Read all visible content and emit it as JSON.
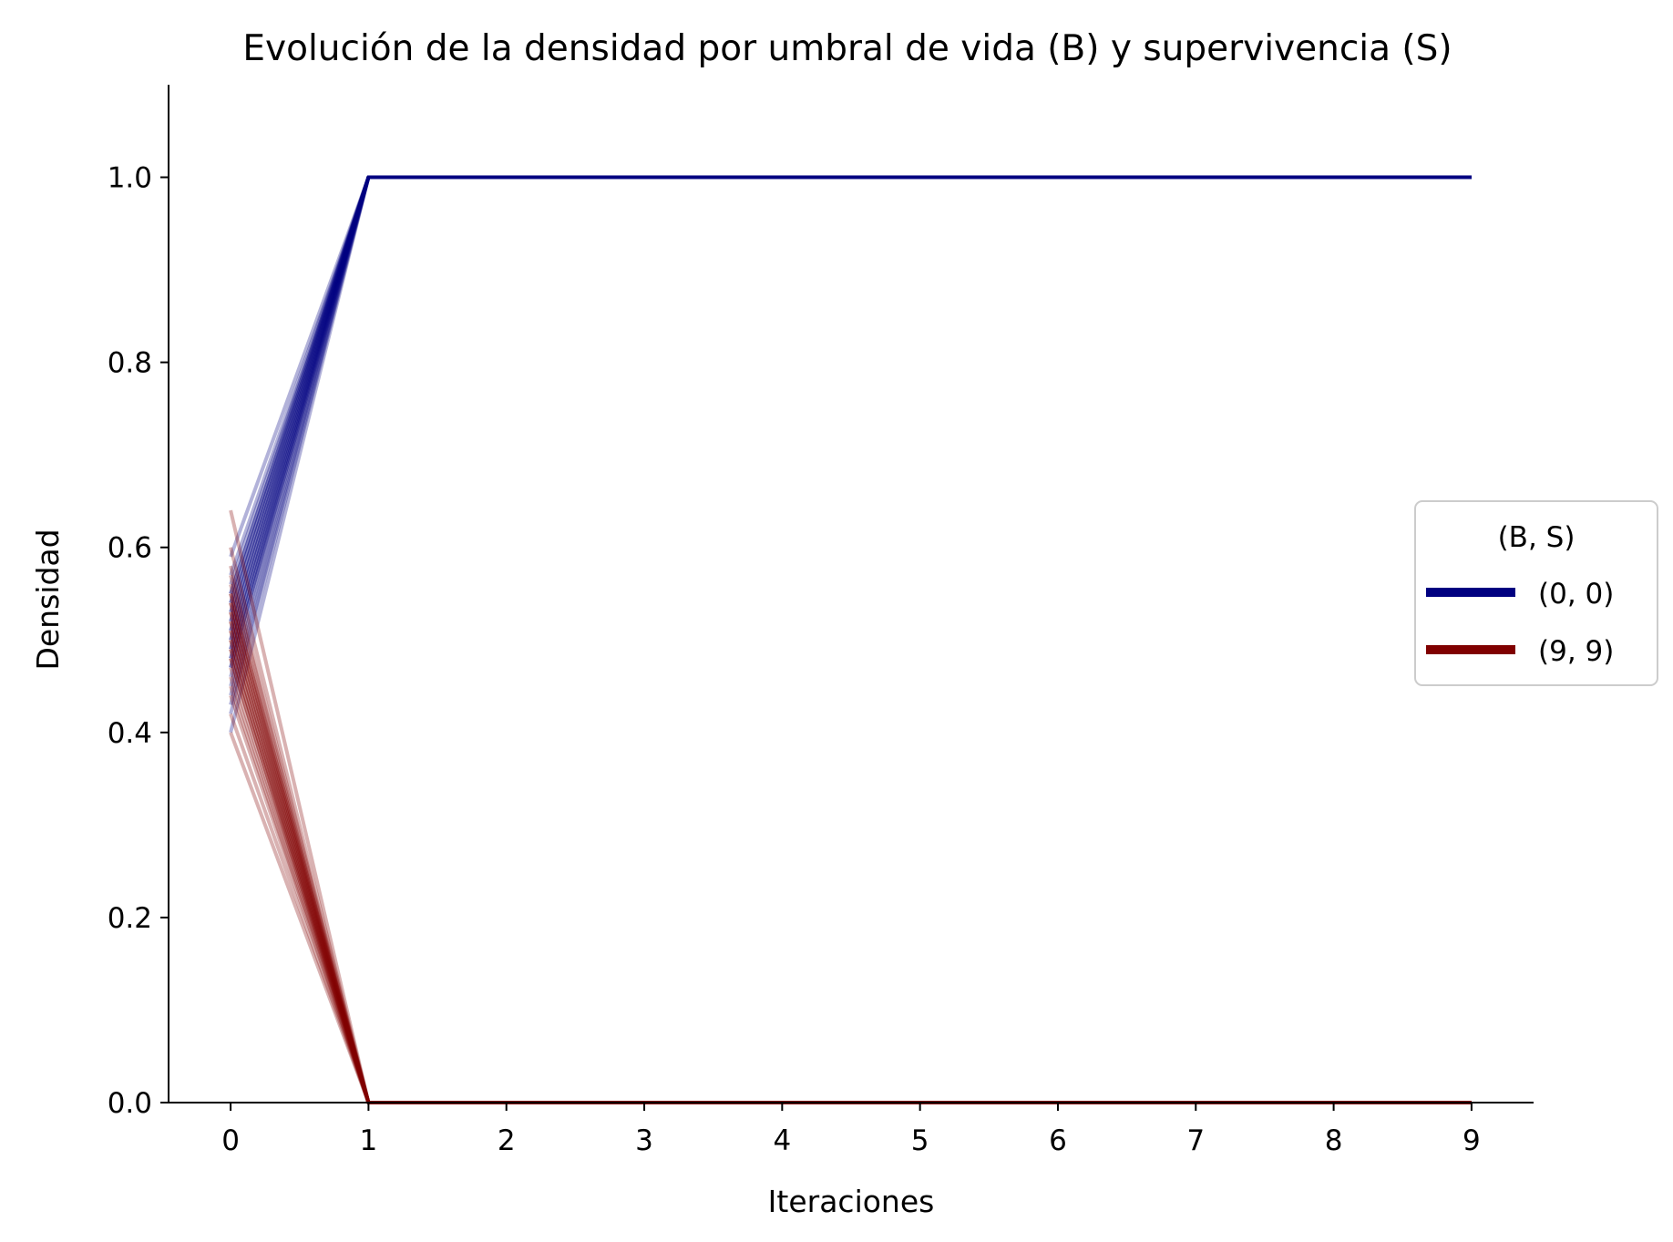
{
  "chart_data": {
    "type": "line",
    "title": "Evolución de la densidad por umbral de vida (B) y supervivencia (S)",
    "xlabel": "Iteraciones",
    "ylabel": "Densidad",
    "xlim": [
      -0.45,
      9.45
    ],
    "ylim": [
      0.0,
      1.1
    ],
    "x": [
      0,
      1,
      2,
      3,
      4,
      5,
      6,
      7,
      8,
      9
    ],
    "x_ticks": [
      "0",
      "1",
      "2",
      "3",
      "4",
      "5",
      "6",
      "7",
      "8",
      "9"
    ],
    "y_ticks": [
      "0.0",
      "0.2",
      "0.4",
      "0.6",
      "0.8",
      "1.0"
    ],
    "grid": false,
    "legend": {
      "title": "(B, S)",
      "placement": "right",
      "entries": [
        {
          "label": "(0, 0)",
          "color": "#000080"
        },
        {
          "label": "(9, 9)",
          "color": "#800000"
        }
      ]
    },
    "series_groups": [
      {
        "name": "(0, 0)",
        "color": "#000080",
        "start_values": [
          0.59,
          0.57,
          0.56,
          0.55,
          0.55,
          0.54,
          0.54,
          0.53,
          0.53,
          0.52,
          0.52,
          0.51,
          0.51,
          0.5,
          0.5,
          0.49,
          0.49,
          0.48,
          0.48,
          0.47,
          0.47,
          0.46,
          0.45,
          0.44,
          0.43,
          0.42,
          0.4
        ],
        "subsequent_value": 1.0
      },
      {
        "name": "(9, 9)",
        "color": "#800000",
        "start_values": [
          0.64,
          0.6,
          0.58,
          0.57,
          0.56,
          0.55,
          0.55,
          0.54,
          0.54,
          0.53,
          0.53,
          0.52,
          0.52,
          0.51,
          0.51,
          0.5,
          0.5,
          0.49,
          0.49,
          0.48,
          0.48,
          0.47,
          0.46,
          0.45,
          0.44,
          0.42,
          0.4
        ],
        "subsequent_value": 0.0
      }
    ]
  }
}
